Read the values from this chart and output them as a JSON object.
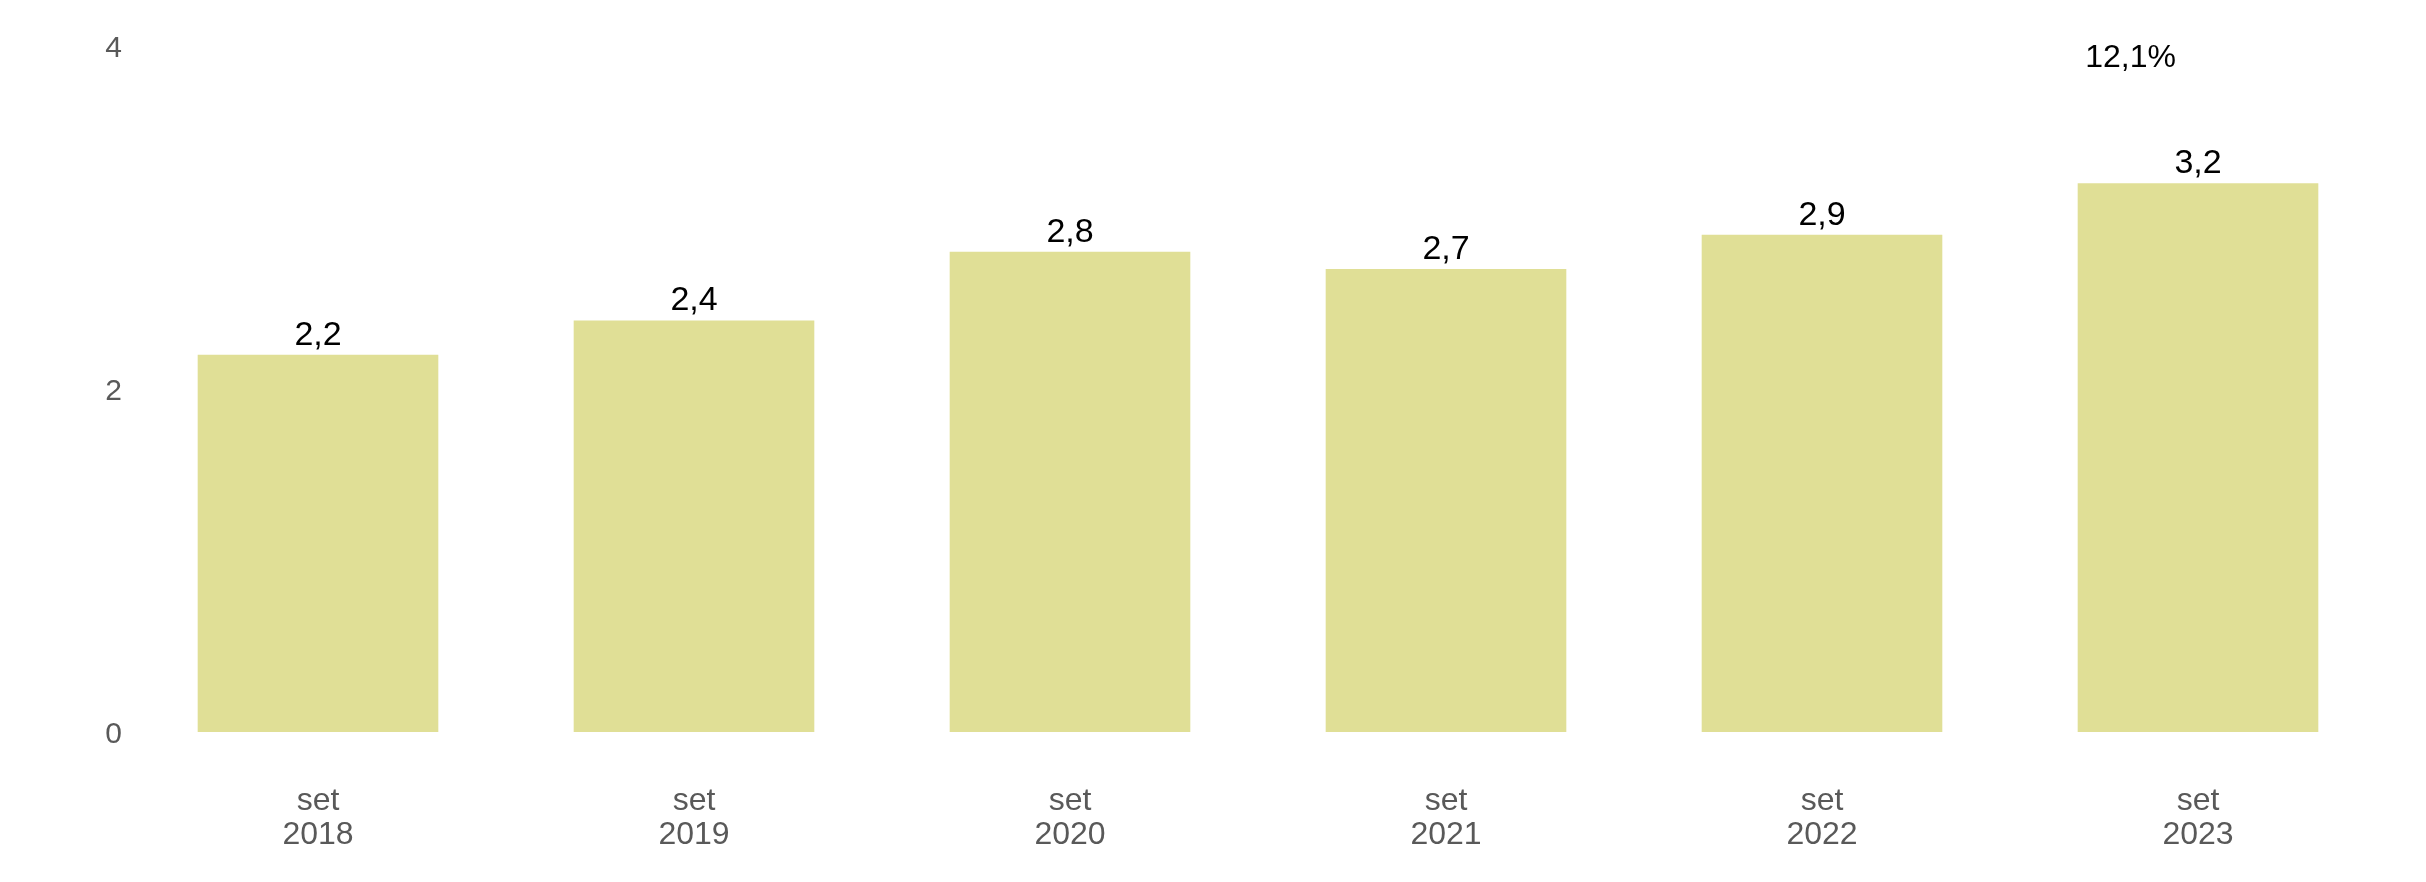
{
  "chart_data": {
    "type": "bar",
    "categories": [
      "set\n2018",
      "set\n2019",
      "set\n2020",
      "set\n2021",
      "set\n2022",
      "set\n2023"
    ],
    "values": [
      2.2,
      2.4,
      2.8,
      2.7,
      2.9,
      3.2
    ],
    "value_labels": [
      "2,2",
      "2,4",
      "2,8",
      "2,7",
      "2,9",
      "3,2"
    ],
    "color": "#e0df96",
    "ylim": [
      0,
      4
    ],
    "yticks": [
      0,
      2,
      4
    ],
    "annotations": [
      "12,1%"
    ]
  }
}
